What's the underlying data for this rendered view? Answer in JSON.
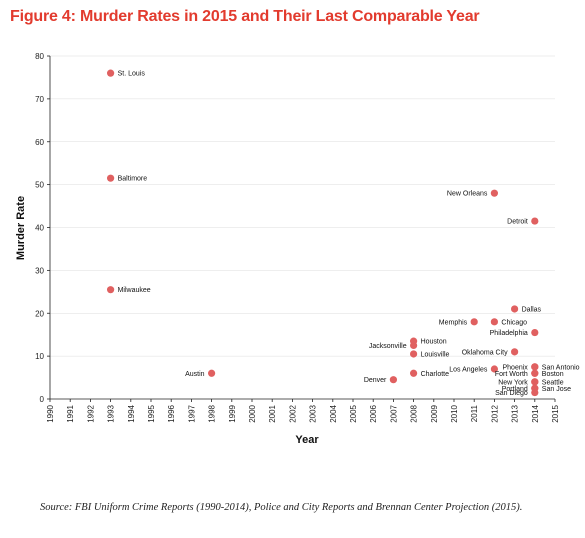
{
  "figure_title": "Figure 4: Murder Rates in 2015 and Their Last Comparable Year",
  "source_note": "Source: FBI Uniform Crime Reports (1990-2014), Police and City Reports and Brennan Center Projection (2015).",
  "colors": {
    "title": "#e23b2e",
    "point": "#e06060",
    "axis": "#222222",
    "grid": "#dddddd"
  },
  "chart_data": {
    "type": "scatter",
    "title": "",
    "xlabel": "Year",
    "ylabel": "Murder Rate",
    "xlim": [
      1990,
      2015
    ],
    "ylim": [
      0,
      80
    ],
    "x_ticks": [
      "1990",
      "1991",
      "1992",
      "1993",
      "1994",
      "1995",
      "1996",
      "1997",
      "1998",
      "1999",
      "2000",
      "2001",
      "2002",
      "2003",
      "2004",
      "2005",
      "2006",
      "2007",
      "2008",
      "2009",
      "2010",
      "2011",
      "2012",
      "2013",
      "2014",
      "2015"
    ],
    "y_ticks": [
      "0",
      "10",
      "20",
      "30",
      "40",
      "50",
      "60",
      "70",
      "80"
    ],
    "grid": "horizontal",
    "points": [
      {
        "label": "St. Louis",
        "x": 1993,
        "y": 76,
        "label_side": "right"
      },
      {
        "label": "Baltimore",
        "x": 1993,
        "y": 51.5,
        "label_side": "right"
      },
      {
        "label": "Milwaukee",
        "x": 1993,
        "y": 25.5,
        "label_side": "right"
      },
      {
        "label": "Austin",
        "x": 1998,
        "y": 6,
        "label_side": "left"
      },
      {
        "label": "Denver",
        "x": 2007,
        "y": 4.5,
        "label_side": "left"
      },
      {
        "label": "Houston",
        "x": 2008,
        "y": 13.5,
        "label_side": "right"
      },
      {
        "label": "Jacksonville",
        "x": 2008,
        "y": 12.5,
        "label_side": "left"
      },
      {
        "label": "Louisville",
        "x": 2008,
        "y": 10.5,
        "label_side": "right"
      },
      {
        "label": "Charlotte",
        "x": 2008,
        "y": 6,
        "label_side": "right"
      },
      {
        "label": "Memphis",
        "x": 2011,
        "y": 18,
        "label_side": "left"
      },
      {
        "label": "New Orleans",
        "x": 2012,
        "y": 48,
        "label_side": "left"
      },
      {
        "label": "Chicago",
        "x": 2012,
        "y": 18,
        "label_side": "right"
      },
      {
        "label": "Los Angeles",
        "x": 2012,
        "y": 7,
        "label_side": "left"
      },
      {
        "label": "Dallas",
        "x": 2013,
        "y": 21,
        "label_side": "right"
      },
      {
        "label": "Oklahoma City",
        "x": 2013,
        "y": 11,
        "label_side": "left"
      },
      {
        "label": "Detroit",
        "x": 2014,
        "y": 41.5,
        "label_side": "left"
      },
      {
        "label": "Philadelphia",
        "x": 2014,
        "y": 15.5,
        "label_side": "left"
      },
      {
        "label": "Phoenix",
        "x": 2014,
        "y": 7.5,
        "label_side": "left"
      },
      {
        "label": "San Antonio",
        "x": 2014,
        "y": 7.5,
        "label_side": "right"
      },
      {
        "label": "Fort Worth",
        "x": 2014,
        "y": 6,
        "label_side": "left"
      },
      {
        "label": "Boston",
        "x": 2014,
        "y": 6,
        "label_side": "right"
      },
      {
        "label": "New York",
        "x": 2014,
        "y": 4,
        "label_side": "left"
      },
      {
        "label": "Seattle",
        "x": 2014,
        "y": 4,
        "label_side": "right"
      },
      {
        "label": "Portland",
        "x": 2014,
        "y": 2.5,
        "label_side": "left"
      },
      {
        "label": "San Jose",
        "x": 2014,
        "y": 2.5,
        "label_side": "right"
      },
      {
        "label": "San Diego",
        "x": 2014,
        "y": 1.5,
        "label_side": "left"
      }
    ]
  }
}
